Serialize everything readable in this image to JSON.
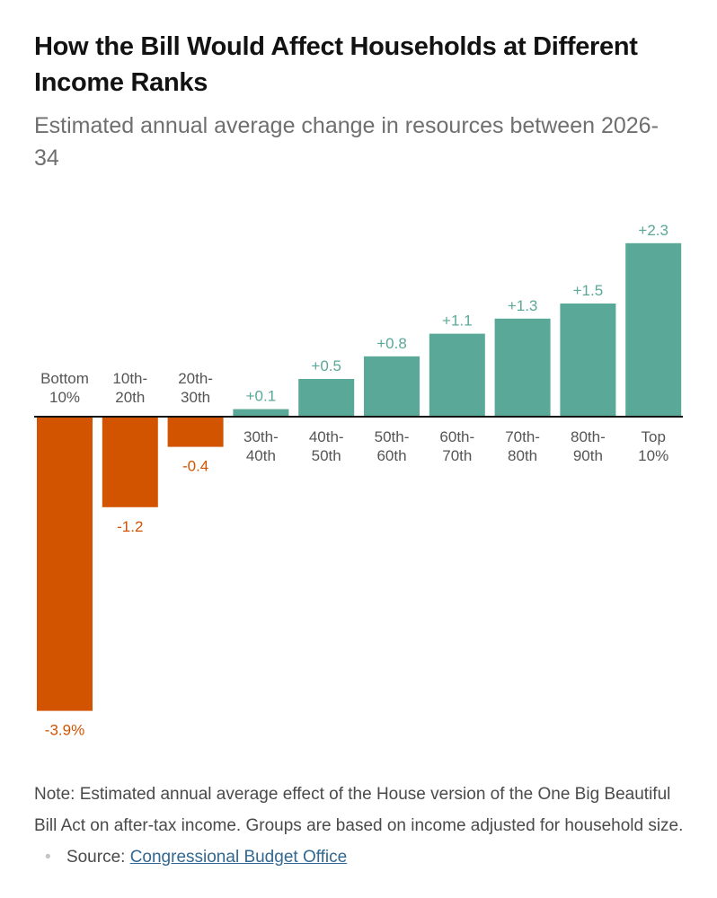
{
  "title": "How the Bill Would Affect Households at Different Income Ranks",
  "subtitle": "Estimated annual average change in resources between 2026-34",
  "colors": {
    "negative": "#d35400",
    "positive": "#5aa898",
    "axis": "#121212"
  },
  "chart_data": {
    "type": "bar",
    "title": "How the Bill Would Affect Households at Different Income Ranks",
    "subtitle": "Estimated annual average change in resources between 2026-34",
    "xlabel": "",
    "ylabel": "",
    "ylim": [
      -3.9,
      2.3
    ],
    "grid": false,
    "categories": [
      [
        "Bottom",
        "10%"
      ],
      [
        "10th-",
        "20th"
      ],
      [
        "20th-",
        "30th"
      ],
      [
        "30th-",
        "40th"
      ],
      [
        "40th-",
        "50th"
      ],
      [
        "50th-",
        "60th"
      ],
      [
        "60th-",
        "70th"
      ],
      [
        "70th-",
        "80th"
      ],
      [
        "80th-",
        "90th"
      ],
      [
        "Top",
        "10%"
      ]
    ],
    "values": [
      -3.9,
      -1.2,
      -0.4,
      0.1,
      0.5,
      0.8,
      1.1,
      1.3,
      1.5,
      2.3
    ],
    "value_labels": [
      "-3.9%",
      "-1.2",
      "-0.4",
      "+0.1",
      "+0.5",
      "+0.8",
      "+1.1",
      "+1.3",
      "+1.5",
      "+2.3"
    ]
  },
  "footer": {
    "note": "Note: Estimated annual average effect of the House version of the One Big Beautiful Bill Act on after-tax income. Groups are based on income adjusted for household size.",
    "separator": "•",
    "source_prefix": "Source: ",
    "source_link": "Congressional Budget Office"
  }
}
